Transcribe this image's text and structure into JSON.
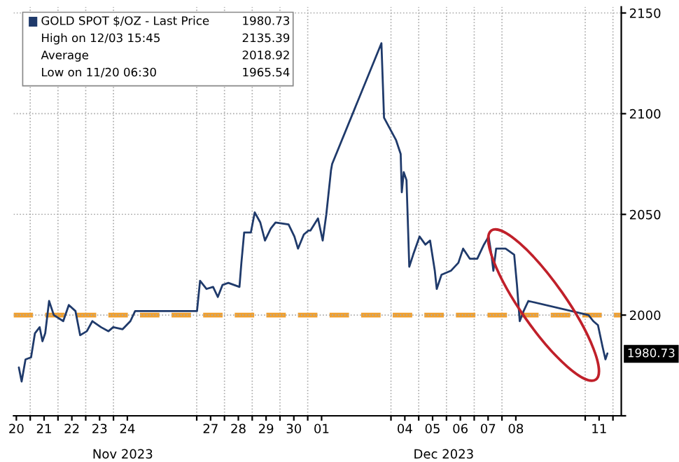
{
  "chart_data": {
    "type": "line",
    "x": [
      "2023-11-20T14:10",
      "2023-11-20T16:34",
      "2023-11-20T19:55",
      "2023-11-21T00:43",
      "2023-11-21T04:05",
      "2023-11-21T08:10",
      "2023-11-21T10:34",
      "2023-11-21T12:58",
      "2023-11-21T16:19",
      "2023-11-21T20:24",
      "2023-11-22T04:34",
      "2023-11-22T09:22",
      "2023-11-22T15:07",
      "2023-11-22T19:12",
      "2023-11-23T00:58",
      "2023-11-23T05:46",
      "2023-11-23T13:12",
      "2023-11-23T19:41",
      "2023-11-23T23:46",
      "2023-11-24T07:55",
      "2023-11-24T14:38",
      "2023-11-24T18:43",
      "2023-11-27T00:14",
      "2023-11-27T02:53",
      "2023-11-27T08:24",
      "2023-11-27T14:10",
      "2023-11-27T18:14",
      "2023-11-27T22:19",
      "2023-11-28T03:22",
      "2023-11-28T12:58",
      "2023-11-28T14:38",
      "2023-11-28T17:02",
      "2023-11-28T22:48",
      "2023-11-29T02:10",
      "2023-11-29T06:58",
      "2023-11-29T11:02",
      "2023-11-29T16:05",
      "2023-11-29T20:10",
      "2023-11-30T07:26",
      "2023-11-30T12:29",
      "2023-11-30T15:36",
      "2023-11-30T20:38",
      "2023-12-01T00:43",
      "2023-12-01T02:24",
      "2023-12-01T08:53",
      "2023-12-01T12:58",
      "2023-12-01T16:05",
      "2023-12-01T20:10",
      "2023-12-01T21:07",
      "2023-12-03T15:45",
      "2023-12-03T18:00",
      "2023-12-04T04:19",
      "2023-12-04T08:24",
      "2023-12-04T09:22",
      "2023-12-04T11:02",
      "2023-12-04T13:26",
      "2023-12-04T15:07",
      "2023-12-04T15:50",
      "2023-12-04T19:12",
      "2023-12-05T00:43",
      "2023-12-05T05:46",
      "2023-12-05T09:50",
      "2023-12-05T13:55",
      "2023-12-05T15:36",
      "2023-12-05T19:41",
      "2023-12-06T03:50",
      "2023-12-06T10:19",
      "2023-12-06T14:24",
      "2023-12-06T20:10",
      "2023-12-07T02:38",
      "2023-12-07T08:24",
      "2023-12-07T12:29",
      "2023-12-07T14:53",
      "2023-12-07T16:34",
      "2023-12-07T18:58",
      "2023-12-08T00:43",
      "2023-12-08T03:07",
      "2023-12-08T10:34",
      "2023-12-08T12:58",
      "2023-12-08T15:22",
      "2023-12-08T18:43",
      "2023-12-08T22:48",
      "2023-12-11T02:53",
      "2023-12-11T06:58",
      "2023-12-11T11:02",
      "2023-12-11T15:07",
      "2023-12-11T17:31",
      "2023-12-11T19:12"
    ],
    "series": [
      {
        "name": "GOLD SPOT $/OZ - Last Price",
        "color": "#1f3a6b",
        "values": [
          1974,
          1967,
          1978,
          1979,
          1991,
          1994,
          1987,
          1991,
          2007,
          2000,
          1997,
          2005,
          2002,
          1990,
          1992,
          1997,
          1994,
          1992,
          1994,
          1993,
          1997,
          2002,
          2002,
          2017,
          2013,
          2014,
          2009,
          2015,
          2016,
          2014,
          2026,
          2041,
          2041,
          2051,
          2046,
          2037,
          2043,
          2046,
          2045,
          2039,
          2033,
          2040,
          2042,
          2042,
          2048,
          2037,
          2050,
          2072,
          2075,
          2135,
          2098,
          2087,
          2080,
          2061,
          2071,
          2067,
          2037,
          2024,
          2030,
          2039,
          2035,
          2037,
          2022,
          2013,
          2020,
          2022,
          2026,
          2033,
          2028,
          2028,
          2035,
          2039,
          2030,
          2022,
          2033,
          2033,
          2033,
          2030,
          2015,
          1997,
          2002,
          2007,
          2000,
          1997,
          1995,
          1984,
          1978,
          1981
        ]
      }
    ],
    "xlim": [
      "2023-11-20T09:36",
      "2023-12-12T07:12"
    ],
    "xticks": [
      {
        "value": "2023-11-20T12:00",
        "label": "20"
      },
      {
        "value": "2023-11-21T12:00",
        "label": "21"
      },
      {
        "value": "2023-11-22T12:00",
        "label": "22"
      },
      {
        "value": "2023-11-23T12:00",
        "label": "23"
      },
      {
        "value": "2023-11-24T12:00",
        "label": "24"
      },
      {
        "value": "2023-11-27T12:00",
        "label": "27"
      },
      {
        "value": "2023-11-28T12:00",
        "label": "28"
      },
      {
        "value": "2023-11-29T12:00",
        "label": "29"
      },
      {
        "value": "2023-11-30T12:00",
        "label": "30"
      },
      {
        "value": "2023-12-01T12:00",
        "label": "01"
      },
      {
        "value": "2023-12-04T12:00",
        "label": "04"
      },
      {
        "value": "2023-12-05T12:00",
        "label": "05"
      },
      {
        "value": "2023-12-06T12:00",
        "label": "06"
      },
      {
        "value": "2023-12-07T12:00",
        "label": "07"
      },
      {
        "value": "2023-12-08T12:00",
        "label": "08"
      },
      {
        "value": "2023-12-11T12:00",
        "label": "11"
      },
      {
        "value": "2023-11-21",
        "label": null
      },
      {
        "value": "2023-11-22",
        "label": null
      },
      {
        "value": "2023-11-23",
        "label": null
      },
      {
        "value": "2023-11-24",
        "label": null
      },
      {
        "value": "2023-11-27",
        "label": null
      },
      {
        "value": "2023-11-28",
        "label": null
      },
      {
        "value": "2023-11-29",
        "label": null
      },
      {
        "value": "2023-11-30",
        "label": null
      },
      {
        "value": "2023-12-01",
        "label": null
      },
      {
        "value": "2023-12-04",
        "label": null
      },
      {
        "value": "2023-12-05",
        "label": null
      },
      {
        "value": "2023-12-06",
        "label": null
      },
      {
        "value": "2023-12-07",
        "label": null
      },
      {
        "value": "2023-12-08",
        "label": null
      },
      {
        "value": "2023-12-11",
        "label": null
      },
      {
        "value": "2023-12-12",
        "label": null
      }
    ],
    "x2lim": [
      "2023-11-20T09:36",
      "2023-12-12T07:12"
    ],
    "x2ticks": [
      {
        "value": "2023-11-24T08:00",
        "label": "Nov 2023"
      },
      {
        "value": "2023-12-05T21:36",
        "label": "Dec 2023"
      }
    ],
    "ylim": [
      1950,
      2153
    ],
    "yticks": [
      {
        "value": 1950,
        "label": null
      },
      2000,
      2050,
      2100,
      2150
    ],
    "grid": true,
    "legend": "top left",
    "ref_lines": [
      {
        "axis": "y",
        "value": 2000,
        "color": "#f0a030",
        "line_style": "dashed"
      }
    ],
    "annotations": [
      {
        "text": "1980.73",
        "y": 1980.73
      },
      "High on 12/03 15:45",
      "2135.39",
      "Average",
      "2018.92",
      "Low on 11/20 06:30",
      "1965.54"
    ]
  }
}
